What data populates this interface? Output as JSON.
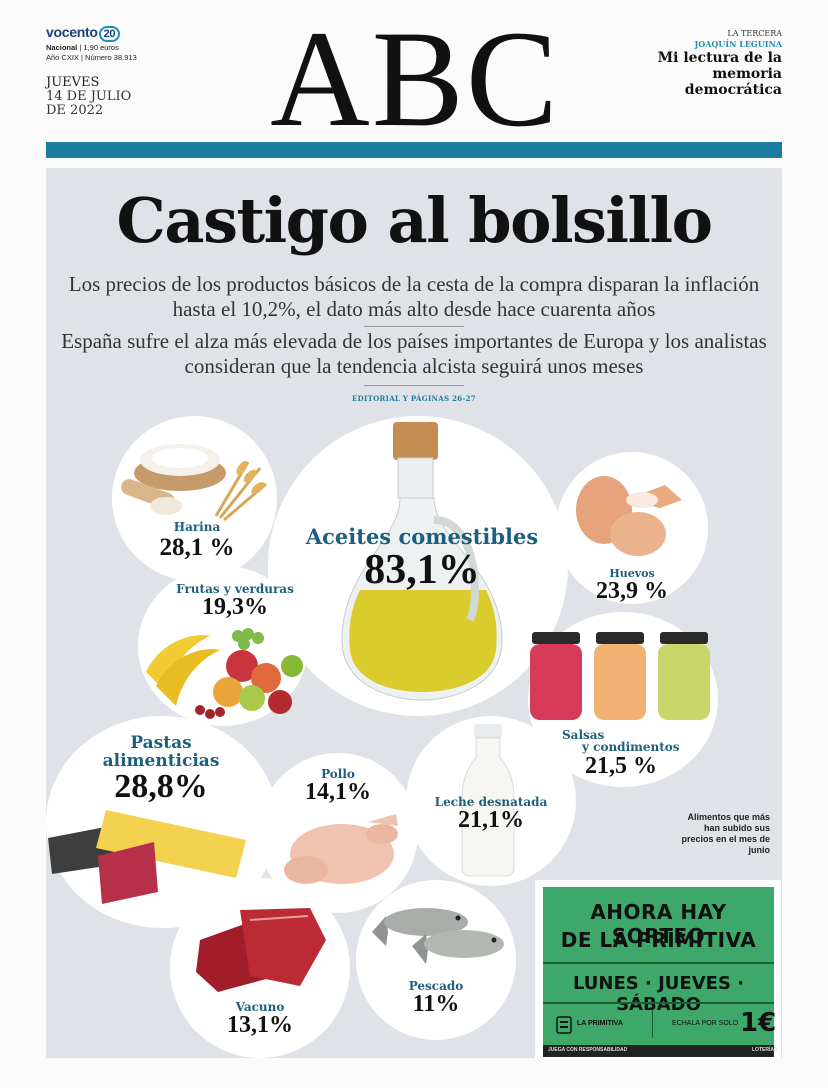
{
  "masthead": {
    "vocento": "vocento",
    "vocento_num": "20",
    "edition": "Nacional",
    "price": "| 1,90 euros",
    "issue": "Año CXIX | Número 38.913",
    "day": "JUEVES",
    "date_line1": "14 DE JULIO",
    "date_line2": "DE 2022",
    "logo": "ABC",
    "section": "LA TERCERA",
    "author": "JOAQUÍN LEGUINA",
    "article": "Mi lectura de la memoria democrática"
  },
  "front": {
    "headline": "Castigo al bolsillo",
    "deck1": "Los precios de los productos básicos de la cesta de la compra disparan la inflación hasta el 10,2%, el dato más alto desde hace cuarenta años",
    "deck2": "España sufre el alza más elevada de los países importantes de Europa y los analistas consideran que la tendencia alcista seguirá unos meses",
    "editorial_ref": "EDITORIAL Y PÁGINAS 26-27"
  },
  "foods": {
    "harina": {
      "label": "Harina",
      "value": "28,1 %"
    },
    "aceites": {
      "label": "Aceites comestibles",
      "value": "83,1%"
    },
    "huevos": {
      "label": "Huevos",
      "value": "23,9 %"
    },
    "frutas": {
      "label": "Frutas y verduras",
      "value": "19,3%"
    },
    "salsas": {
      "label1": "Salsas",
      "label2": "y condimentos",
      "value": "21,5 %"
    },
    "pastas": {
      "label1": "Pastas",
      "label2": "alimenticias",
      "value": "28,8%"
    },
    "pollo": {
      "label": "Pollo",
      "value": "14,1%"
    },
    "leche": {
      "label": "Leche desnatada",
      "value": "21,1%"
    },
    "vacuno": {
      "label": "Vacuno",
      "value": "13,1%"
    },
    "pescado": {
      "label": "Pescado",
      "value": "11%"
    }
  },
  "side_note": "Alimentos que más han subido sus precios en el mes de junio",
  "ad": {
    "line1": "AHORA HAY SORTEO",
    "line2": "DE LA PRIMITIVA",
    "days": "LUNES · JUEVES · SÁBADO",
    "brand": "LA PRIMITIVA",
    "price_text": "ECHALA POR SOLO",
    "price": "1€",
    "footer_left": "JUEGA CON RESPONSABILIDAD",
    "footer_right": "LOTERÍAS"
  }
}
